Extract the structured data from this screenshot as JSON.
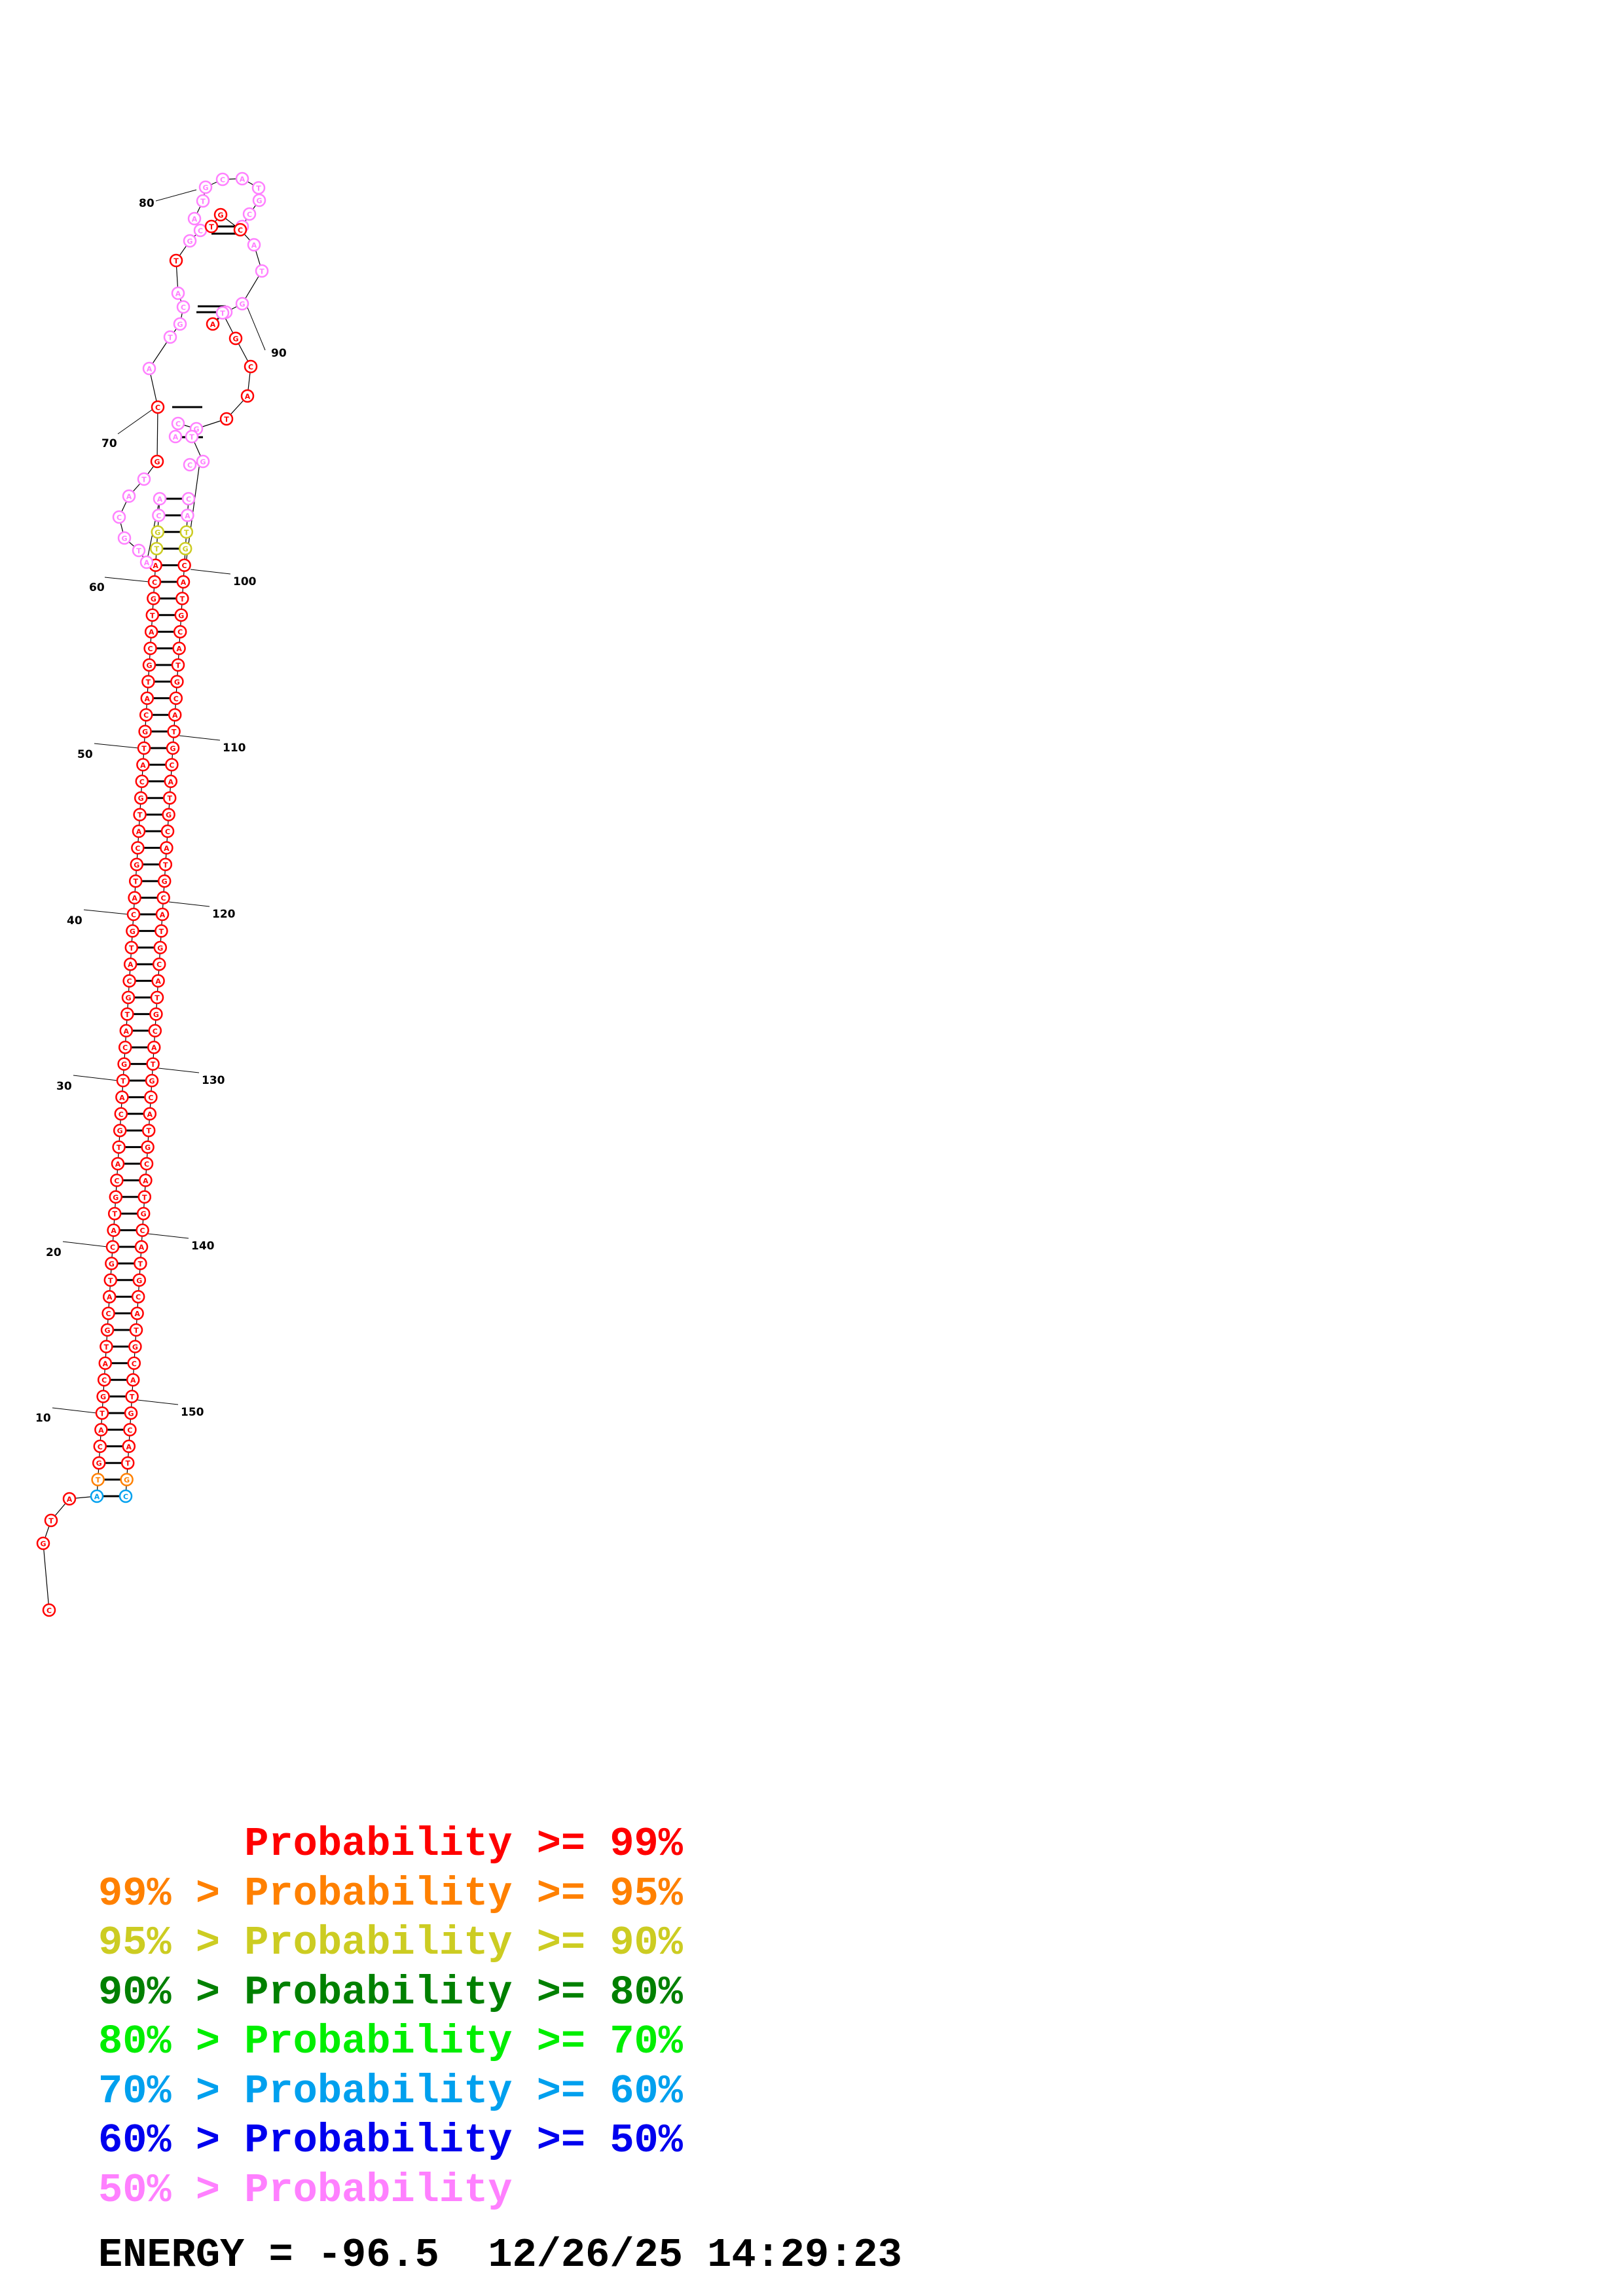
{
  "structure": {
    "position_labels": [
      "10",
      "20",
      "30",
      "40",
      "50",
      "60",
      "70",
      "80",
      "90",
      "100",
      "110",
      "120",
      "130",
      "140",
      "150"
    ]
  },
  "legend": {
    "rows": [
      {
        "pad": "      ",
        "text": "Probability >= 99%",
        "color": "#ff0000"
      },
      {
        "pad": "",
        "text": "99% > Probability >= 95%",
        "color": "#ff8000"
      },
      {
        "pad": "",
        "text": "95% > Probability >= 90%",
        "color": "#cccc22"
      },
      {
        "pad": "",
        "text": "90% > Probability >= 80%",
        "color": "#008000"
      },
      {
        "pad": "",
        "text": "80% > Probability >= 70%",
        "color": "#00ee00"
      },
      {
        "pad": "",
        "text": "70% > Probability >= 60%",
        "color": "#00a0ee"
      },
      {
        "pad": "",
        "text": "60% > Probability >= 50%",
        "color": "#0000ee"
      },
      {
        "pad": "",
        "text": "50% > Probability",
        "color": "#ff80ff"
      }
    ]
  },
  "footer": {
    "energy": "ENERGY = -96.5",
    "timestamp": "12/26/25 14:29:23"
  },
  "colors": {
    "red": "#ff0000",
    "orange": "#ff8000",
    "yellow": "#cccc22",
    "blue": "#00a0ee",
    "pink": "#ff80ff"
  }
}
